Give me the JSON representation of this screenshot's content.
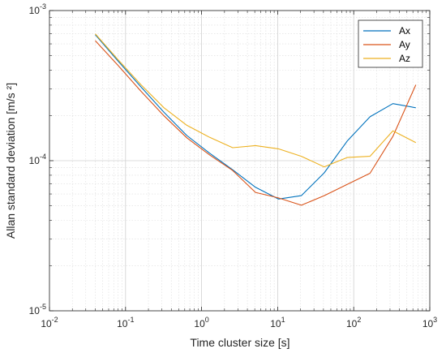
{
  "chart_data": {
    "type": "line",
    "title": "",
    "xlabel": "Time cluster size [s]",
    "ylabel": "Allan standard deviation [m/s ²]",
    "x_scale": "log",
    "y_scale": "log",
    "xlim": [
      0.01,
      1000
    ],
    "ylim": [
      1e-05,
      0.001
    ],
    "x_ticks": [
      0.01,
      0.1,
      1,
      10,
      100,
      1000
    ],
    "y_ticks": [
      1e-05,
      0.0001,
      0.001
    ],
    "x_tick_labels": [
      {
        "base": "10",
        "exp": "-2"
      },
      {
        "base": "10",
        "exp": "-1"
      },
      {
        "base": "10",
        "exp": "0"
      },
      {
        "base": "10",
        "exp": "1"
      },
      {
        "base": "10",
        "exp": "2"
      },
      {
        "base": "10",
        "exp": "3"
      }
    ],
    "y_tick_labels": [
      {
        "base": "10",
        "exp": "-5"
      },
      {
        "base": "10",
        "exp": "-4"
      },
      {
        "base": "10",
        "exp": "-3"
      }
    ],
    "grid": true,
    "minor_grid": true,
    "legend_position": "top-right",
    "series": [
      {
        "name": "Ax",
        "color": "#0072BD",
        "x": [
          0.04,
          0.08,
          0.16,
          0.32,
          0.64,
          1.28,
          2.56,
          5.12,
          10.24,
          20.48,
          40.96,
          81.92,
          163.84,
          327.68,
          655.36
        ],
        "y": [
          0.00069,
          0.00046,
          0.00031,
          0.00021,
          0.000147,
          0.000112,
          8.7e-05,
          6.65e-05,
          5.55e-05,
          5.85e-05,
          8.3e-05,
          0.000135,
          0.000196,
          0.00024,
          0.000225
        ]
      },
      {
        "name": "Ay",
        "color": "#D95319",
        "x": [
          0.04,
          0.08,
          0.16,
          0.32,
          0.64,
          1.28,
          2.56,
          5.12,
          10.24,
          20.48,
          40.96,
          81.92,
          163.84,
          327.68,
          655.36
        ],
        "y": [
          0.00063,
          0.00043,
          0.00029,
          0.000199,
          0.000142,
          0.000109,
          8.6e-05,
          6.15e-05,
          5.65e-05,
          5.05e-05,
          5.85e-05,
          6.95e-05,
          8.25e-05,
          0.000145,
          0.00032
        ]
      },
      {
        "name": "Az",
        "color": "#EDB120",
        "x": [
          0.04,
          0.08,
          0.16,
          0.32,
          0.64,
          1.28,
          2.56,
          5.12,
          10.24,
          20.48,
          40.96,
          81.92,
          163.84,
          327.68,
          655.36
        ],
        "y": [
          0.0007,
          0.00047,
          0.00032,
          0.000225,
          0.000172,
          0.000143,
          0.000122,
          0.000126,
          0.00012,
          0.000107,
          9.1e-05,
          0.000105,
          0.000107,
          0.000158,
          0.000132
        ]
      }
    ]
  }
}
